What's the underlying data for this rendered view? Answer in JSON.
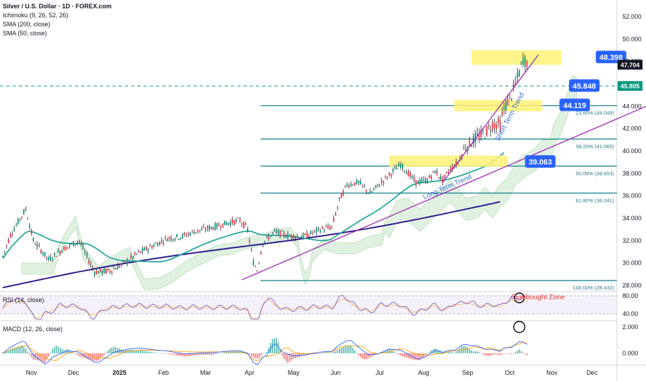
{
  "header": {
    "symbol_line": "Silver / U.S. Dollar · 1D · FOREX.com",
    "indicators": [
      "Ichimoku (9, 26, 52, 26)",
      "SMA (200, close)",
      "SMA (50, close)"
    ]
  },
  "colors": {
    "bull": "#089981",
    "bear": "#f23645",
    "sma200": "#2e1b8f",
    "sma50": "#26a69a",
    "fib": "#0e7c8a",
    "trend": "#9c27b0",
    "highlight": "#fff176",
    "label_bg": "#2962ff",
    "cloud": "#c8e6c9",
    "cloud_bear": "#ffcdd2",
    "rsi": "#7e57c2",
    "macd": "#2962ff",
    "signal": "#ff9800"
  },
  "chart_data": {
    "type": "candlestick",
    "title": "Silver / U.S. Dollar · 1D · FOREX.com",
    "price_axis": {
      "ticks": [
        52,
        50,
        48,
        46,
        44,
        42,
        40,
        38,
        36,
        34,
        32,
        30,
        28
      ],
      "tick_labels": [
        "52.000",
        "50.000",
        "48.000",
        "46.000",
        "44.000",
        "42.000",
        "40.000",
        "38.000",
        "36.000",
        "34.000",
        "32.000",
        "30.000",
        "28.000"
      ],
      "range": [
        27.5,
        53.2
      ]
    },
    "time_axis": {
      "labels": [
        {
          "t": 15,
          "text": "Nov",
          "bold": false
        },
        {
          "t": 37,
          "text": "Dec",
          "bold": false
        },
        {
          "t": 61,
          "text": "2025",
          "bold": true
        },
        {
          "t": 84,
          "text": "Feb",
          "bold": false
        },
        {
          "t": 106,
          "text": "Mar",
          "bold": false
        },
        {
          "t": 129,
          "text": "Apr",
          "bold": false
        },
        {
          "t": 152,
          "text": "May",
          "bold": false
        },
        {
          "t": 174,
          "text": "Jun",
          "bold": false
        },
        {
          "t": 197,
          "text": "Jul",
          "bold": false
        },
        {
          "t": 220,
          "text": "Aug",
          "bold": false
        },
        {
          "t": 243,
          "text": "Sep",
          "bold": false
        },
        {
          "t": 265,
          "text": "Oct",
          "bold": false
        },
        {
          "t": 287,
          "text": "Nov",
          "bold": false
        },
        {
          "t": 308,
          "text": "Dec",
          "bold": false
        }
      ]
    },
    "current_price": {
      "value": 47.704,
      "label": "47.704"
    },
    "prev_level": {
      "value": 45.805,
      "label": "45.805"
    },
    "fib_levels": [
      {
        "value": 44.049,
        "label": "23.60% (44.049)"
      },
      {
        "value": 41.065,
        "label": "38.20% (41.065)"
      },
      {
        "value": 38.653,
        "label": "50.00% (38.653)"
      },
      {
        "value": 36.241,
        "label": "61.80% (36.241)"
      },
      {
        "value": 28.432,
        "label": "100.00% (28.432)"
      }
    ],
    "price_tags": [
      {
        "text": "48.398",
        "value": 48.398,
        "t": 310
      },
      {
        "text": "45.848",
        "value": 45.848,
        "t": 296
      },
      {
        "text": "44.119",
        "value": 44.119,
        "t": 291
      },
      {
        "text": "39.063",
        "value": 39.063,
        "t": 273
      }
    ],
    "highlight_zones": [
      {
        "t0": 245,
        "t1": 292,
        "v0": 47.7,
        "v1": 49.0
      },
      {
        "t0": 236,
        "t1": 282,
        "v0": 43.55,
        "v1": 44.55
      },
      {
        "t0": 202,
        "t1": 264,
        "v0": 38.6,
        "v1": 39.6
      }
    ],
    "trend_lines": [
      {
        "name": "Short Term Trend",
        "t0": 230,
        "v0": 37.2,
        "t1": 280,
        "v1": 48.6
      },
      {
        "name": "Long Term Trend",
        "t0": 125,
        "v0": 28.5,
        "t1": 346,
        "v1": 44.7
      }
    ],
    "macd_axis": {
      "ticks": [
        2.0,
        0.0
      ],
      "tick_labels": [
        "2.000",
        "0.000"
      ]
    },
    "rsi_axis": {
      "ticks": [
        80,
        40
      ],
      "tick_labels": [
        "80.00",
        "40.00"
      ]
    }
  },
  "rsi_pane": {
    "label": "RSI (14, close)",
    "annotation": "Overbought Zone"
  },
  "macd_pane": {
    "label": "MACD (12, 26, close)"
  }
}
